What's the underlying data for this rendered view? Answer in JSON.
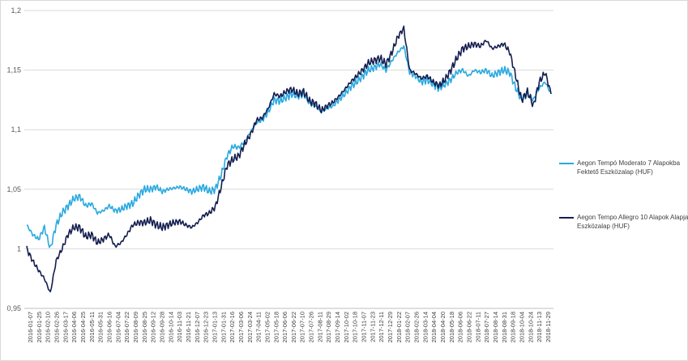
{
  "chart_data": {
    "type": "line",
    "title": "",
    "xlabel": "",
    "ylabel": "",
    "ylim": [
      0.95,
      1.2
    ],
    "y_ticks": [
      "0,95",
      "1",
      "1,05",
      "1,1",
      "1,15",
      "1,2"
    ],
    "grid": "horizontal",
    "legend_position": "right",
    "x_tick_labels": [
      "2016-01-07",
      "2016-01-25",
      "2016-02-10",
      "2016-02-26",
      "2016-03-17",
      "2016-04-06",
      "2016-04-25",
      "2016-05-11",
      "2016-05-31",
      "2016-06-16",
      "2016-07-04",
      "2016-07-22",
      "2016-08-09",
      "2016-08-25",
      "2016-09-12",
      "2016-09-28",
      "2016-10-14",
      "2016-11-03",
      "2016-11-21",
      "2016-12-07",
      "2016-12-23",
      "2017-01-13",
      "2017-01-31",
      "2017-02-16",
      "2017-03-06",
      "2017-03-24",
      "2017-04-11",
      "2017-05-02",
      "2017-05-18",
      "2017-06-06",
      "2017-06-22",
      "2017-07-10",
      "2017-07-26",
      "2017-08-11",
      "2017-08-29",
      "2017-09-14",
      "2017-10-02",
      "2017-10-18",
      "2017-11-07",
      "2017-11-23",
      "2017-12-11",
      "2017-12-29",
      "2018-01-22",
      "2018-02-07",
      "2018-02-26",
      "2018-03-14",
      "2018-04-04",
      "2018-04-20",
      "2018-05-18",
      "2018-06-06",
      "2018-06-22",
      "2018-07-11",
      "2018-07-27",
      "2018-08-14",
      "2018-08-31",
      "2018-09-18",
      "2018-10-04",
      "2018-10-24",
      "2018-11-13",
      "2018-11-29"
    ],
    "series": [
      {
        "name": "Aegon Tempó Moderato 7 Alapokba Fektető Eszközalap (HUF)",
        "color": "#29a9e0",
        "values": [
          1.02,
          1.012,
          1.008,
          1.018,
          1.0,
          1.02,
          1.03,
          1.036,
          1.042,
          1.044,
          1.036,
          1.038,
          1.03,
          1.032,
          1.036,
          1.032,
          1.033,
          1.036,
          1.038,
          1.045,
          1.05,
          1.05,
          1.052,
          1.048,
          1.05,
          1.051,
          1.052,
          1.05,
          1.048,
          1.05,
          1.052,
          1.048,
          1.05,
          1.062,
          1.078,
          1.086,
          1.085,
          1.09,
          1.098,
          1.106,
          1.108,
          1.115,
          1.125,
          1.124,
          1.127,
          1.13,
          1.128,
          1.13,
          1.122,
          1.12,
          1.115,
          1.118,
          1.12,
          1.125,
          1.13,
          1.136,
          1.14,
          1.145,
          1.15,
          1.152,
          1.155,
          1.15,
          1.158,
          1.165,
          1.17,
          1.148,
          1.145,
          1.14,
          1.142,
          1.138,
          1.135,
          1.138,
          1.142,
          1.148,
          1.15,
          1.145,
          1.15,
          1.148,
          1.15,
          1.145,
          1.148,
          1.15,
          1.148,
          1.135,
          1.125,
          1.13,
          1.125,
          1.135,
          1.14,
          1.13
        ]
      },
      {
        "name": "Aegon Tempo Allegro 10 Alapok Alapja Eszközalap (HUF)",
        "color": "#141e50",
        "values": [
          1.0,
          0.99,
          0.982,
          0.975,
          0.963,
          0.99,
          1.0,
          1.012,
          1.018,
          1.018,
          1.01,
          1.012,
          1.005,
          1.008,
          1.012,
          1.002,
          1.005,
          1.012,
          1.02,
          1.022,
          1.022,
          1.024,
          1.02,
          1.018,
          1.02,
          1.022,
          1.023,
          1.02,
          1.018,
          1.022,
          1.028,
          1.03,
          1.035,
          1.052,
          1.07,
          1.075,
          1.078,
          1.088,
          1.096,
          1.108,
          1.11,
          1.118,
          1.13,
          1.128,
          1.132,
          1.134,
          1.13,
          1.132,
          1.124,
          1.122,
          1.116,
          1.12,
          1.123,
          1.128,
          1.134,
          1.14,
          1.145,
          1.15,
          1.156,
          1.158,
          1.16,
          1.155,
          1.165,
          1.178,
          1.185,
          1.15,
          1.147,
          1.143,
          1.145,
          1.14,
          1.137,
          1.142,
          1.15,
          1.16,
          1.168,
          1.17,
          1.172,
          1.17,
          1.175,
          1.168,
          1.17,
          1.172,
          1.165,
          1.145,
          1.125,
          1.132,
          1.12,
          1.14,
          1.148,
          1.13
        ]
      }
    ]
  }
}
